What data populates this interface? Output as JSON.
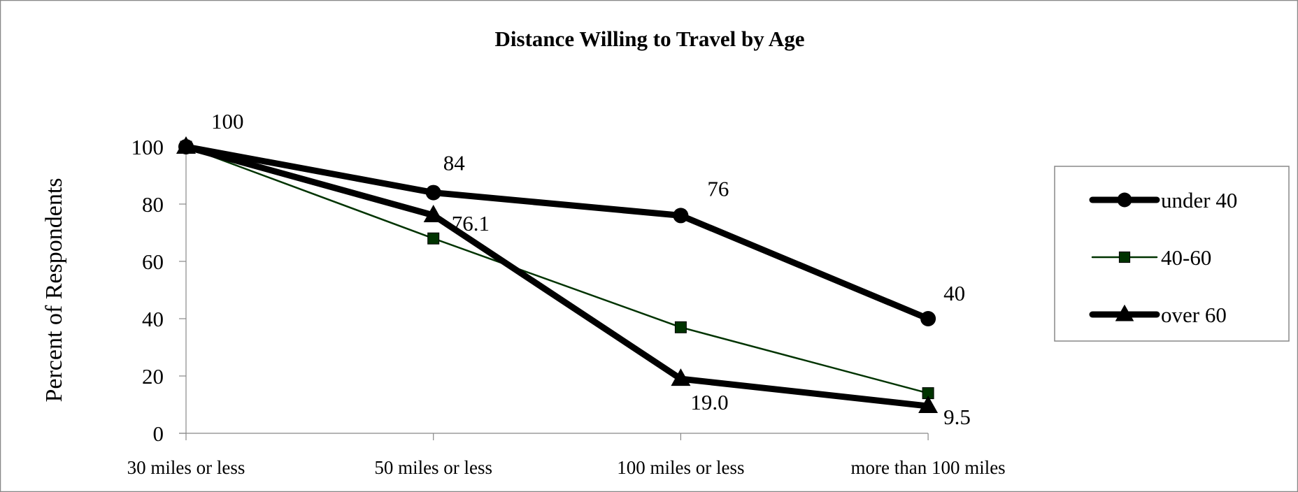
{
  "chart_data": {
    "type": "line",
    "title": "Distance Willing to Travel by Age",
    "xlabel": "",
    "ylabel": "Percent of Respondents",
    "categories": [
      "30 miles or less",
      "50 miles or less",
      "100 miles or less",
      "more than 100 miles"
    ],
    "ylim": [
      0,
      100
    ],
    "yticks": [
      0,
      20,
      40,
      60,
      80,
      100
    ],
    "grid": false,
    "legend_position": "right",
    "series": [
      {
        "name": "under 40",
        "values": [
          100,
          84,
          76,
          40
        ],
        "color": "#000000",
        "marker": "circle",
        "data_labels": [
          "100",
          "84",
          "76",
          "40"
        ]
      },
      {
        "name": "40-60",
        "values": [
          100,
          68,
          37,
          14
        ],
        "color": "#003300",
        "marker": "square",
        "data_labels": [
          null,
          null,
          null,
          null
        ]
      },
      {
        "name": "over 60",
        "values": [
          100,
          76.1,
          19.0,
          9.5
        ],
        "color": "#000000",
        "marker": "triangle",
        "data_labels": [
          null,
          "76.1",
          "19.0",
          "9.5"
        ]
      }
    ]
  }
}
